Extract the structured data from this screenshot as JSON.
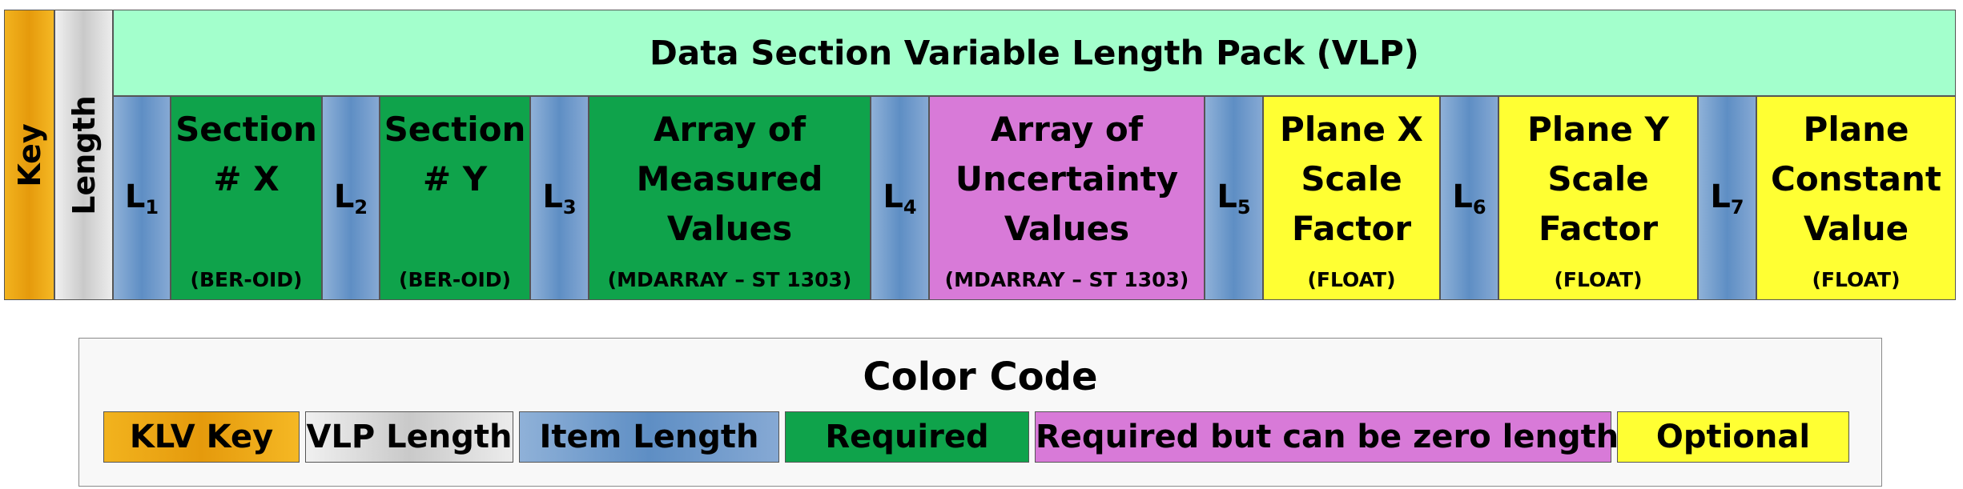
{
  "key_label": "Key",
  "length_label": "Length",
  "vlp_title": "Data Section Variable Length Pack (VLP)",
  "length_markers": [
    {
      "base": "L",
      "sub": "1"
    },
    {
      "base": "L",
      "sub": "2"
    },
    {
      "base": "L",
      "sub": "3"
    },
    {
      "base": "L",
      "sub": "4"
    },
    {
      "base": "L",
      "sub": "5"
    },
    {
      "base": "L",
      "sub": "6"
    },
    {
      "base": "L",
      "sub": "7"
    }
  ],
  "items": [
    {
      "line1": "Section",
      "line2": "# X",
      "line3": "",
      "type": "(BER-OID)"
    },
    {
      "line1": "Section",
      "line2": "# Y",
      "line3": "",
      "type": "(BER-OID)"
    },
    {
      "line1": "Array of",
      "line2": "Measured",
      "line3": "Values",
      "type": "(MDARRAY – ST 1303)"
    },
    {
      "line1": "Array of",
      "line2": "Uncertainty",
      "line3": "Values",
      "type": "(MDARRAY – ST 1303)"
    },
    {
      "line1": "Plane X",
      "line2": "Scale",
      "line3": "Factor",
      "type": "(FLOAT)"
    },
    {
      "line1": "Plane Y",
      "line2": "Scale",
      "line3": "Factor",
      "type": "(FLOAT)"
    },
    {
      "line1": "Plane",
      "line2": "Constant",
      "line3": "Value",
      "type": "(FLOAT)"
    }
  ],
  "legend": {
    "title": "Color Code",
    "entries": [
      {
        "label": "KLV Key",
        "color": "#e59a0c"
      },
      {
        "label": "VLP Length",
        "color": "#d4d4d4"
      },
      {
        "label": "Item Length",
        "color": "#5e8ec4"
      },
      {
        "label": "Required",
        "color": "#0fa34b"
      },
      {
        "label": "Required but can be zero length",
        "color": "#d87ad8"
      },
      {
        "label": "Optional",
        "color": "#ffff33"
      }
    ]
  }
}
